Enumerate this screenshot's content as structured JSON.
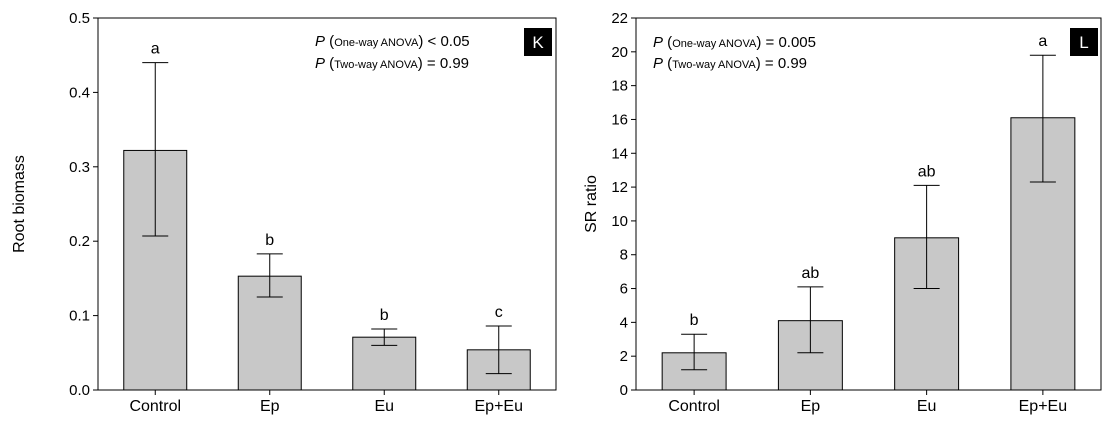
{
  "chart_data": [
    {
      "type": "bar",
      "panel_label": "K",
      "ylabel": "Root biomass",
      "xlabel": "",
      "categories": [
        "Control",
        "Ep",
        "Eu",
        "Ep+Eu"
      ],
      "values": [
        0.322,
        0.153,
        0.071,
        0.054
      ],
      "error_low": [
        0.207,
        0.125,
        0.06,
        0.022
      ],
      "error_high": [
        0.44,
        0.183,
        0.082,
        0.086
      ],
      "letters": [
        "a",
        "b",
        "b",
        "c"
      ],
      "ylim": [
        0,
        0.5
      ],
      "yticks": [
        "0.0",
        "0.1",
        "0.2",
        "0.3",
        "0.4",
        "0.5"
      ],
      "ytick_values": [
        0,
        0.1,
        0.2,
        0.3,
        0.4,
        0.5
      ],
      "annotation_p": "P",
      "annotation_line1_sub": "One-way ANOVA",
      "annotation_line1_val": "< 0.05",
      "annotation_line2_sub": "Two-way ANOVA",
      "annotation_line2_val": "= 0.99",
      "bar_color": "#c8c8c8",
      "grid": false
    },
    {
      "type": "bar",
      "panel_label": "L",
      "ylabel": "SR ratio",
      "xlabel": "",
      "categories": [
        "Control",
        "Ep",
        "Eu",
        "Ep+Eu"
      ],
      "values": [
        2.2,
        4.1,
        9.0,
        16.1
      ],
      "error_low": [
        1.2,
        2.2,
        6.0,
        12.3
      ],
      "error_high": [
        3.3,
        6.1,
        12.1,
        19.8
      ],
      "letters": [
        "b",
        "ab",
        "ab",
        "a"
      ],
      "ylim": [
        0,
        22
      ],
      "yticks": [
        "0",
        "2",
        "4",
        "6",
        "8",
        "10",
        "12",
        "14",
        "16",
        "18",
        "20",
        "22"
      ],
      "ytick_values": [
        0,
        2,
        4,
        6,
        8,
        10,
        12,
        14,
        16,
        18,
        20,
        22
      ],
      "annotation_p": "P",
      "annotation_line1_sub": "One-way ANOVA",
      "annotation_line1_val": "= 0.005",
      "annotation_line2_sub": "Two-way ANOVA",
      "annotation_line2_val": "= 0.99",
      "bar_color": "#c8c8c8",
      "grid": false
    }
  ]
}
